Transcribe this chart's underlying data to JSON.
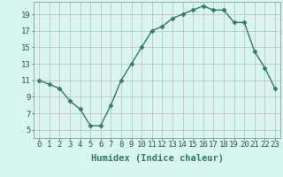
{
  "x": [
    0,
    1,
    2,
    3,
    4,
    5,
    6,
    7,
    8,
    9,
    10,
    11,
    12,
    13,
    14,
    15,
    16,
    17,
    18,
    19,
    20,
    21,
    22,
    23
  ],
  "y": [
    11,
    10.5,
    10,
    8.5,
    7.5,
    5.5,
    5.5,
    8,
    11,
    13,
    15,
    17,
    17.5,
    18.5,
    19,
    19.5,
    20,
    19.5,
    19.5,
    18,
    18,
    14.5,
    12.5,
    10
  ],
  "line_color": "#2d7d6e",
  "marker": "D",
  "markersize": 2.5,
  "linewidth": 1.0,
  "bg_color": "#d8f5f0",
  "grid_color": "#c8b8b8",
  "xlabel": "Humidex (Indice chaleur)",
  "xlim": [
    -0.5,
    23.5
  ],
  "ylim": [
    4,
    20.5
  ],
  "yticks": [
    5,
    7,
    9,
    11,
    13,
    15,
    17,
    19
  ],
  "xticks": [
    0,
    1,
    2,
    3,
    4,
    5,
    6,
    7,
    8,
    9,
    10,
    11,
    12,
    13,
    14,
    15,
    16,
    17,
    18,
    19,
    20,
    21,
    22,
    23
  ],
  "xlabel_fontsize": 7.5,
  "tick_fontsize": 6.5
}
